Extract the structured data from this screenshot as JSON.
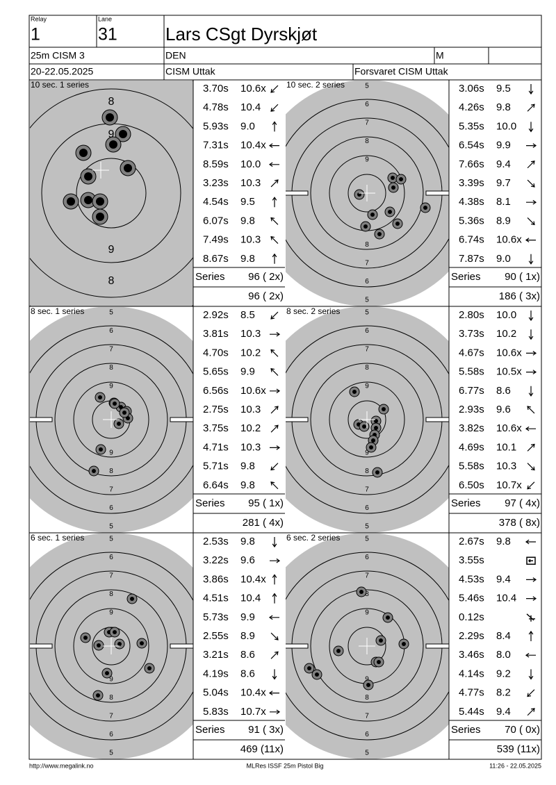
{
  "header": {
    "relay_label": "Relay",
    "relay": "1",
    "lane_label": "Lane",
    "lane": "31",
    "name": "Lars CSgt Dyrskjøt",
    "event": "25m CISM 3",
    "nation": "DEN",
    "gender": "M",
    "date": "20-22.05.2025",
    "club": "CISM Uttak",
    "team": "Forsvaret CISM Uttak"
  },
  "panels": [
    {
      "title": "10 sec. 1 series",
      "ring_labels_top": [
        "8",
        "9"
      ],
      "ring_labels_bottom": [
        "9",
        "8"
      ],
      "shots": [
        {
          "time": "3.70s",
          "score": "10.6x"
        },
        {
          "time": "4.78s",
          "score": "10.4"
        },
        {
          "time": "5.93s",
          "score": "9.0"
        },
        {
          "time": "7.31s",
          "score": "10.4x"
        },
        {
          "time": "8.59s",
          "score": "10.0"
        },
        {
          "time": "3.23s",
          "score": "10.3"
        },
        {
          "time": "4.54s",
          "score": "9.5"
        },
        {
          "time": "6.07s",
          "score": "9.8"
        },
        {
          "time": "7.49s",
          "score": "10.3"
        },
        {
          "time": "8.67s",
          "score": "9.8"
        }
      ],
      "series_label": "Series",
      "series_total": "96 ( 2x)",
      "cumulative": "96 ( 2x)"
    },
    {
      "title": "10 sec. 2 series",
      "ring_labels_top": [
        "5",
        "6",
        "7",
        "8",
        "9"
      ],
      "ring_labels_bottom": [
        "9",
        "8",
        "7",
        "6",
        "5"
      ],
      "shots": [
        {
          "time": "3.06s",
          "score": "9.5"
        },
        {
          "time": "4.26s",
          "score": "9.8"
        },
        {
          "time": "5.35s",
          "score": "10.0"
        },
        {
          "time": "6.54s",
          "score": "9.9"
        },
        {
          "time": "7.66s",
          "score": "9.4"
        },
        {
          "time": "3.39s",
          "score": "9.7"
        },
        {
          "time": "4.38s",
          "score": "8.1"
        },
        {
          "time": "5.36s",
          "score": "8.9"
        },
        {
          "time": "6.74s",
          "score": "10.6x"
        },
        {
          "time": "7.87s",
          "score": "9.0"
        }
      ],
      "series_label": "Series",
      "series_total": "90 ( 1x)",
      "cumulative": "186 ( 3x)"
    },
    {
      "title": "8 sec. 1 series",
      "ring_labels_top": [
        "5",
        "6",
        "7",
        "8",
        "9"
      ],
      "ring_labels_bottom": [
        "9",
        "8",
        "7",
        "6",
        "5"
      ],
      "shots": [
        {
          "time": "2.92s",
          "score": "8.5"
        },
        {
          "time": "3.81s",
          "score": "10.3"
        },
        {
          "time": "4.70s",
          "score": "10.2"
        },
        {
          "time": "5.65s",
          "score": "9.9"
        },
        {
          "time": "6.56s",
          "score": "10.6x"
        },
        {
          "time": "2.75s",
          "score": "10.3"
        },
        {
          "time": "3.75s",
          "score": "10.2"
        },
        {
          "time": "4.71s",
          "score": "10.3"
        },
        {
          "time": "5.71s",
          "score": "9.8"
        },
        {
          "time": "6.64s",
          "score": "9.8"
        }
      ],
      "series_label": "Series",
      "series_total": "95 ( 1x)",
      "cumulative": "281 ( 4x)"
    },
    {
      "title": "8 sec. 2 series",
      "ring_labels_top": [
        "5",
        "6",
        "7",
        "8",
        "9"
      ],
      "ring_labels_bottom": [
        "9",
        "8",
        "7",
        "6",
        "5"
      ],
      "shots": [
        {
          "time": "2.80s",
          "score": "10.0"
        },
        {
          "time": "3.73s",
          "score": "10.2"
        },
        {
          "time": "4.67s",
          "score": "10.6x"
        },
        {
          "time": "5.58s",
          "score": "10.5x"
        },
        {
          "time": "6.77s",
          "score": "8.6"
        },
        {
          "time": "2.93s",
          "score": "9.6"
        },
        {
          "time": "3.82s",
          "score": "10.6x"
        },
        {
          "time": "4.69s",
          "score": "10.1"
        },
        {
          "time": "5.58s",
          "score": "10.3"
        },
        {
          "time": "6.50s",
          "score": "10.7x"
        }
      ],
      "series_label": "Series",
      "series_total": "97 ( 4x)",
      "cumulative": "378 ( 8x)"
    },
    {
      "title": "6 sec. 1 series",
      "ring_labels_top": [
        "5",
        "6",
        "7",
        "8",
        "9"
      ],
      "ring_labels_bottom": [
        "9",
        "8",
        "7",
        "6",
        "5"
      ],
      "shots": [
        {
          "time": "2.53s",
          "score": "9.8"
        },
        {
          "time": "3.22s",
          "score": "9.6"
        },
        {
          "time": "3.86s",
          "score": "10.4x"
        },
        {
          "time": "4.51s",
          "score": "10.4"
        },
        {
          "time": "5.73s",
          "score": "9.9"
        },
        {
          "time": "2.55s",
          "score": "8.9"
        },
        {
          "time": "3.21s",
          "score": "8.6"
        },
        {
          "time": "4.19s",
          "score": "8.6"
        },
        {
          "time": "5.04s",
          "score": "10.4x"
        },
        {
          "time": "5.83s",
          "score": "10.7x"
        }
      ],
      "series_label": "Series",
      "series_total": "91 ( 3x)",
      "cumulative": "469 (11x)"
    },
    {
      "title": "6 sec. 2 series",
      "ring_labels_top": [
        "5",
        "6",
        "7",
        "8",
        "9"
      ],
      "ring_labels_bottom": [
        "9",
        "8",
        "7",
        "6",
        "5"
      ],
      "shots": [
        {
          "time": "2.67s",
          "score": "9.8"
        },
        {
          "time": "3.55s",
          "score": null
        },
        {
          "time": "4.53s",
          "score": "9.4"
        },
        {
          "time": "5.46s",
          "score": "10.4"
        },
        {
          "time": "0.12s",
          "score": null
        },
        {
          "time": "2.29s",
          "score": "8.4"
        },
        {
          "time": "3.46s",
          "score": "8.0"
        },
        {
          "time": "4.14s",
          "score": "9.2"
        },
        {
          "time": "4.77s",
          "score": "8.2"
        },
        {
          "time": "5.44s",
          "score": "9.4"
        }
      ],
      "series_label": "Series",
      "series_total": "70 ( 0x)",
      "cumulative": "539 (11x)"
    }
  ],
  "footer": {
    "url": "http://www.megalink.no",
    "program": "MLRes ISSF 25m Pistol Big",
    "timestamp": "11:26 - 22.05.2025"
  }
}
